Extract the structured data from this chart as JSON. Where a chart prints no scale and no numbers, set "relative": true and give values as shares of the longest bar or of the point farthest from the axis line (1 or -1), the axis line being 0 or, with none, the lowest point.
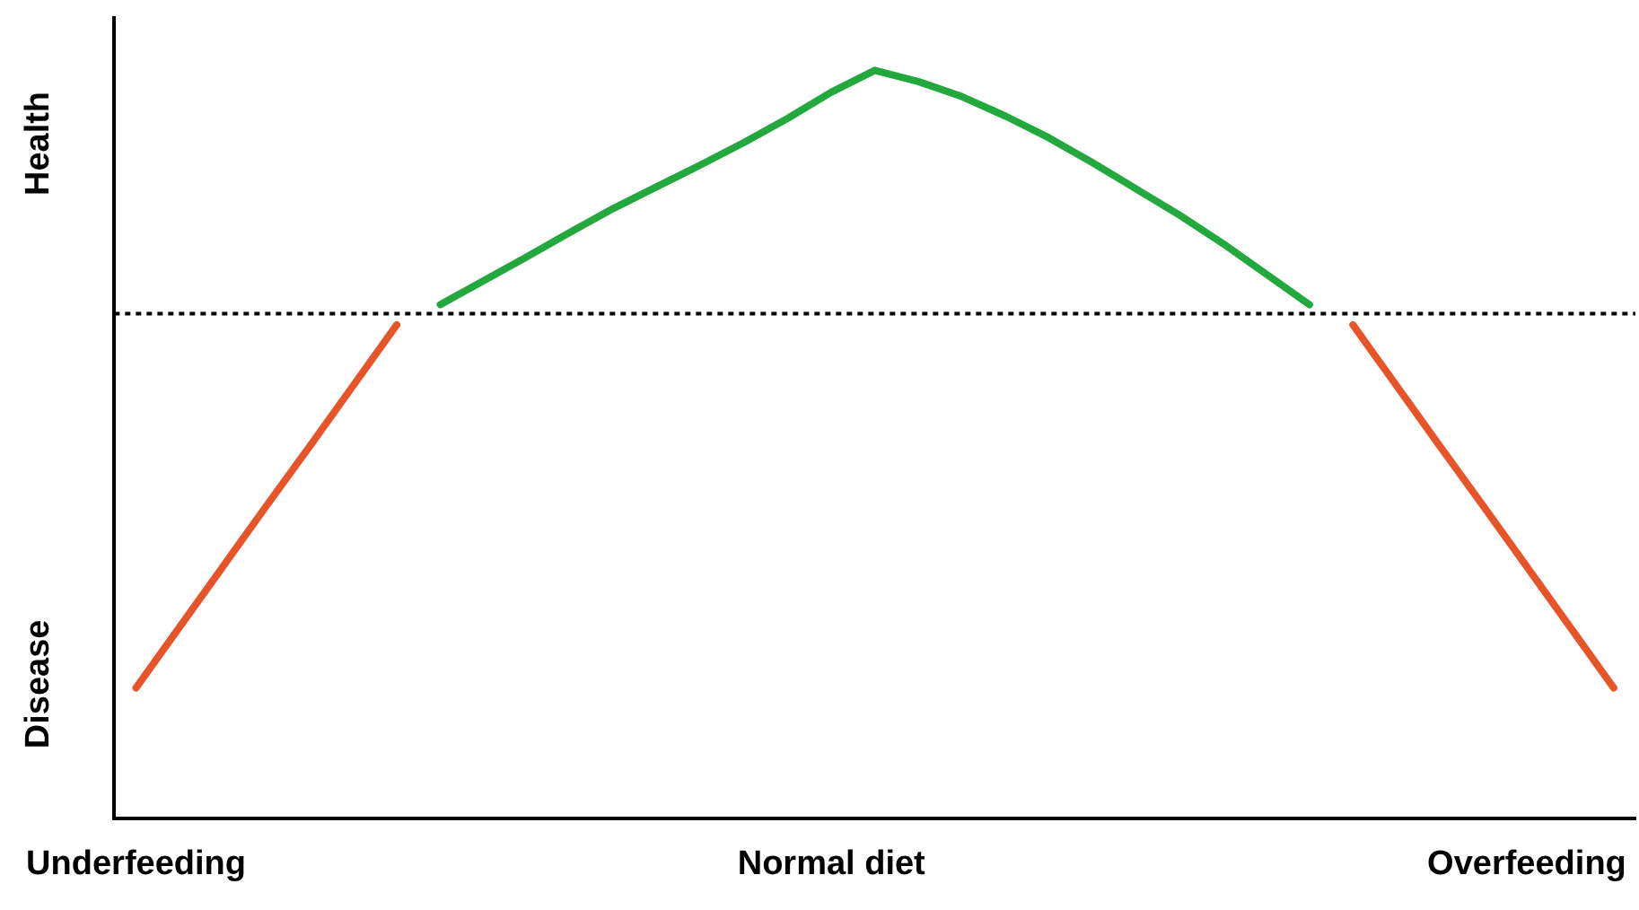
{
  "chart_data": {
    "type": "line",
    "relative": true,
    "categories": [
      "Underfeeding",
      null,
      null,
      null,
      null,
      null,
      null,
      null,
      null,
      null,
      null,
      null,
      null,
      null,
      null,
      null,
      "Normal diet",
      null,
      null,
      null,
      null,
      null,
      null,
      null,
      null,
      null,
      null,
      null,
      null,
      null,
      null,
      null,
      "Overfeeding",
      null,
      null
    ],
    "series": [
      {
        "color": "#e8542a",
        "values": [
          0.175,
          0.256,
          0.337,
          0.418,
          0.498,
          0.579,
          0.66,
          null,
          null,
          null,
          null,
          null,
          null,
          null,
          null,
          null,
          null,
          null,
          null,
          null,
          null,
          null,
          null,
          null,
          null,
          null,
          null,
          null,
          null,
          null,
          null,
          null,
          null,
          null,
          null
        ]
      },
      {
        "color": "#22a83c",
        "values": [
          null,
          null,
          null,
          null,
          null,
          null,
          null,
          0.687,
          0.719,
          0.751,
          0.784,
          0.816,
          0.845,
          0.874,
          0.904,
          0.936,
          0.971,
          1,
          0.985,
          0.965,
          0.939,
          0.91,
          0.877,
          0.842,
          0.807,
          0.769,
          0.728,
          0.687,
          null,
          null,
          null,
          null,
          null,
          null,
          null
        ]
      },
      {
        "color": "#e8542a",
        "values": [
          null,
          null,
          null,
          null,
          null,
          null,
          null,
          null,
          null,
          null,
          null,
          null,
          null,
          null,
          null,
          null,
          null,
          null,
          null,
          null,
          null,
          null,
          null,
          null,
          null,
          null,
          null,
          null,
          0.66,
          0.579,
          0.498,
          0.418,
          0.337,
          0.256,
          0.175
        ]
      }
    ],
    "ref_lines": [
      {
        "axis": "y",
        "value": 0.675,
        "color": "#000000",
        "line_style": "dotted"
      }
    ],
    "annotations": [
      "Health",
      "Disease"
    ],
    "grid": false,
    "legend": false,
    "marker": "none",
    "line_style": "solid"
  }
}
